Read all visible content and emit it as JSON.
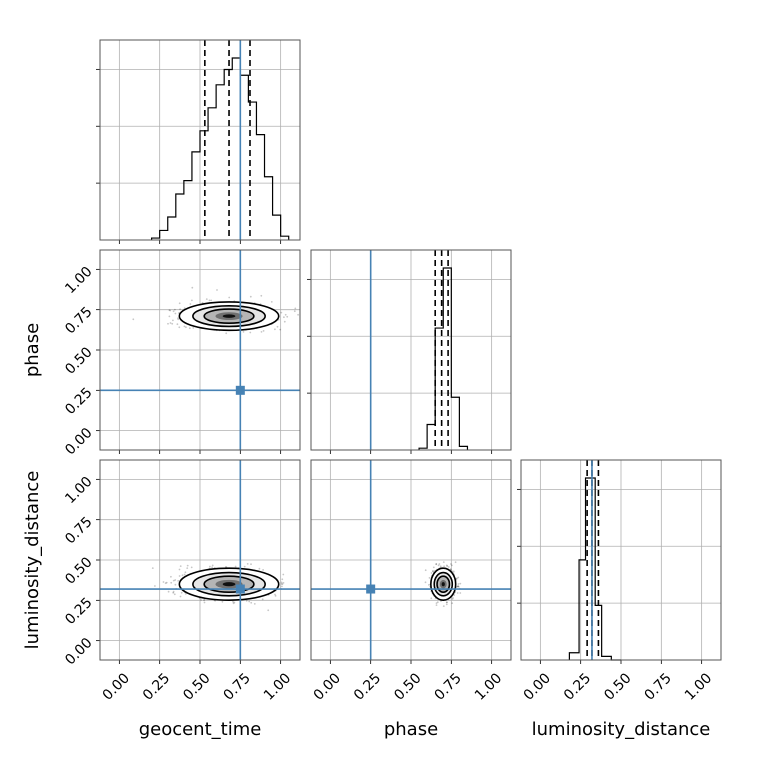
{
  "chart_data": {
    "type": "corner",
    "parameters": [
      "geocent_time",
      "phase",
      "luminosity_distance"
    ],
    "truths": [
      0.75,
      0.25,
      0.32
    ],
    "truth_color": "#4682b4",
    "ticks": [
      "0.00",
      "0.25",
      "0.50",
      "0.75",
      "1.00"
    ],
    "axis_range": [
      -0.12,
      1.12
    ],
    "grid": true,
    "histograms": [
      {
        "parameter": "geocent_time",
        "bin_edges": [
          0.2,
          0.25,
          0.3,
          0.35,
          0.4,
          0.45,
          0.5,
          0.55,
          0.6,
          0.65,
          0.7,
          0.75,
          0.8,
          0.85,
          0.9,
          0.95,
          1.0,
          1.05
        ],
        "counts": [
          0.01,
          0.05,
          0.12,
          0.24,
          0.31,
          0.46,
          0.57,
          0.69,
          0.81,
          0.89,
          0.95,
          0.86,
          0.72,
          0.55,
          0.33,
          0.13,
          0.02
        ],
        "quantiles": [
          0.53,
          0.68,
          0.81
        ]
      },
      {
        "parameter": "phase",
        "bin_edges": [
          0.55,
          0.6,
          0.65,
          0.7,
          0.75,
          0.8,
          0.85
        ],
        "counts": [
          0.01,
          0.14,
          0.67,
          1.0,
          0.29,
          0.02
        ],
        "quantiles": [
          0.65,
          0.69,
          0.73
        ]
      },
      {
        "parameter": "luminosity_distance",
        "bin_edges": [
          0.18,
          0.24,
          0.28,
          0.34,
          0.38,
          0.44,
          0.5
        ],
        "counts": [
          0.04,
          0.55,
          1.0,
          0.3,
          0.02,
          0.0
        ],
        "quantiles": [
          0.29,
          0.32,
          0.36
        ]
      }
    ],
    "joint": [
      {
        "x": "geocent_time",
        "y": "phase",
        "center": [
          0.68,
          0.71
        ],
        "spread": [
          0.14,
          0.04
        ]
      },
      {
        "x": "geocent_time",
        "y": "luminosity_distance",
        "center": [
          0.68,
          0.35
        ],
        "spread": [
          0.14,
          0.045
        ]
      },
      {
        "x": "phase",
        "y": "luminosity_distance",
        "center": [
          0.7,
          0.35
        ],
        "spread": [
          0.035,
          0.045
        ]
      }
    ]
  }
}
